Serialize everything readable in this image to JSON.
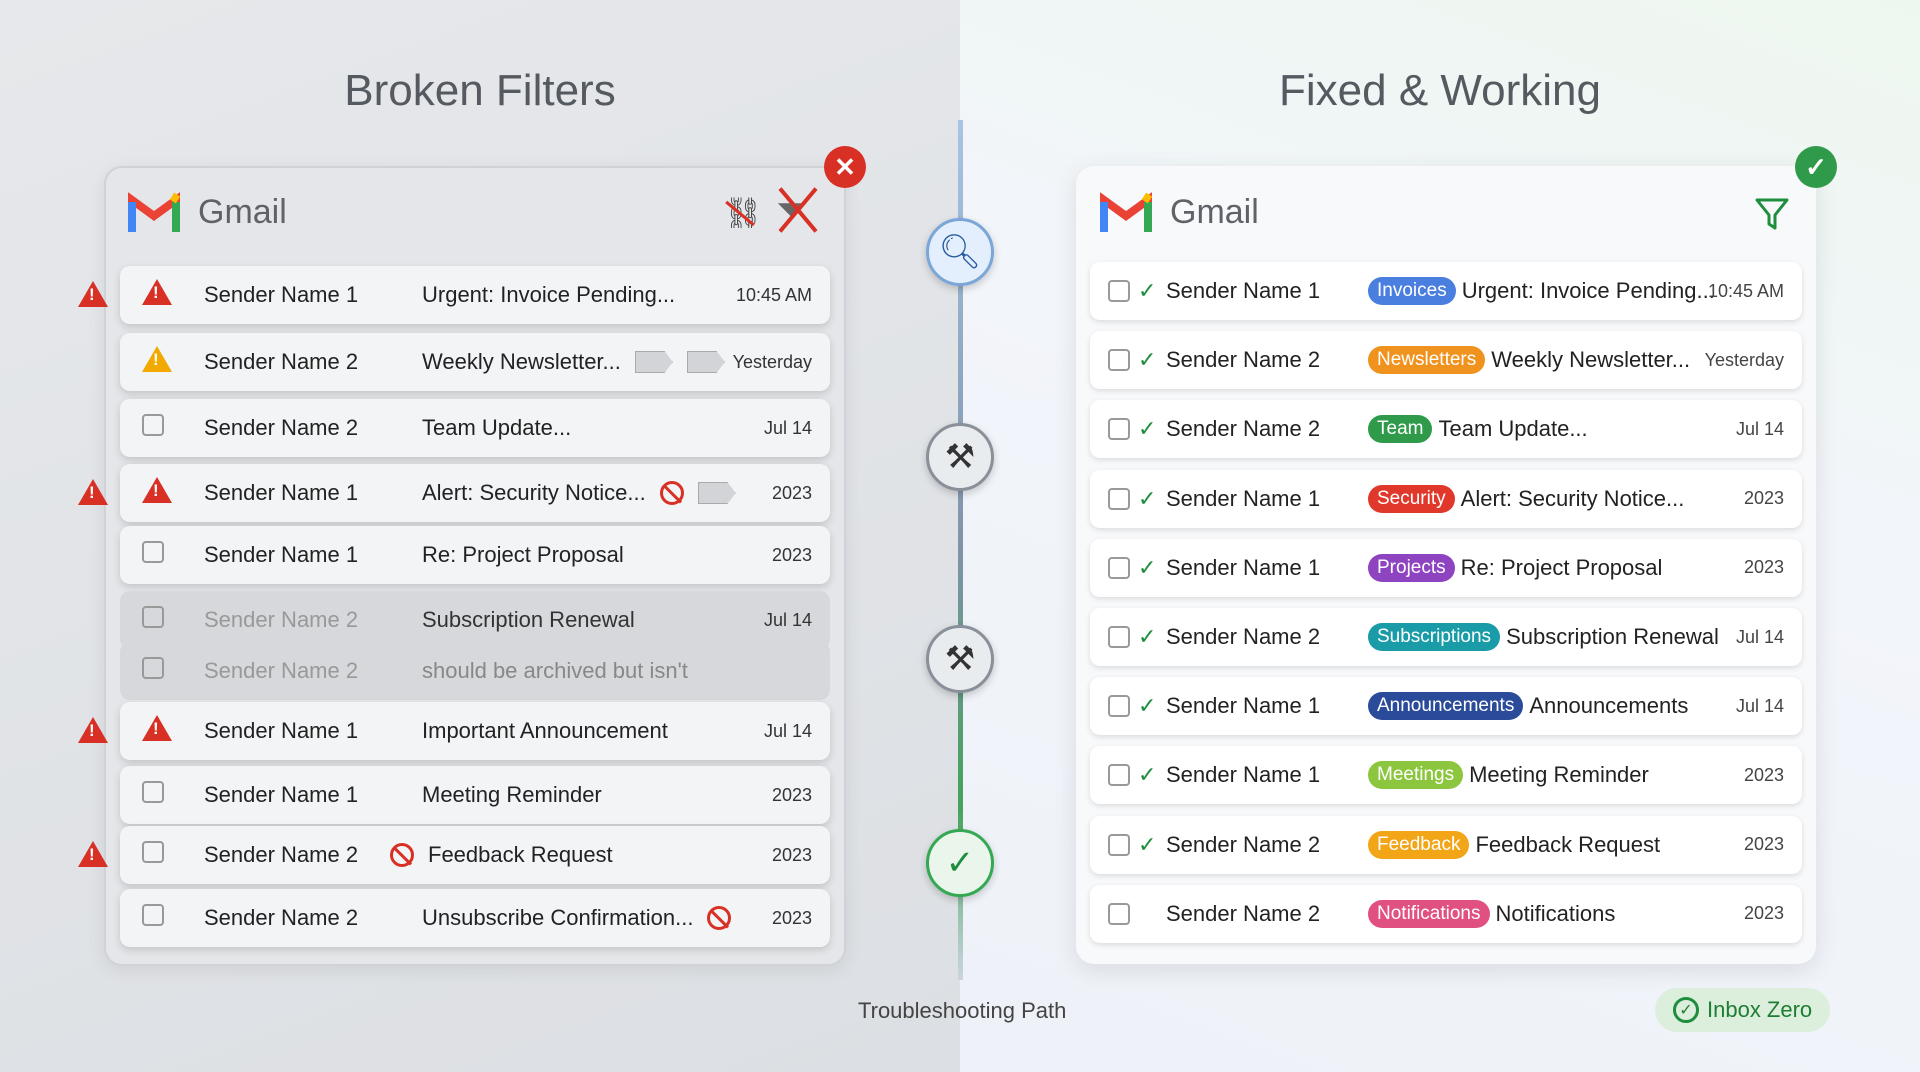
{
  "left": {
    "title": "Broken Filters",
    "brand": "Gmail",
    "rows": [
      {
        "sender": "Sender Name 1",
        "subject": "Urgent: Invoice Pending...",
        "date": "10:45 AM",
        "lead": "warn-red",
        "side_warn": true,
        "tags": 0,
        "blocked": false,
        "dim": false
      },
      {
        "sender": "Sender Name 2",
        "subject": "Weekly Newsletter...",
        "date": "Yesterday",
        "lead": "warn-yellow",
        "side_warn": false,
        "tags": 2,
        "blocked": false,
        "dim": false
      },
      {
        "sender": "Sender Name 2",
        "subject": "Team Update...",
        "date": "Jul 14",
        "lead": "checkbox",
        "side_warn": false,
        "tags": 0,
        "blocked": false,
        "dim": false
      },
      {
        "sender": "Sender Name 1",
        "subject": "Alert: Security Notice...",
        "date": "2023",
        "lead": "warn-red",
        "side_warn": true,
        "tags": 1,
        "blocked": true,
        "dim": false
      },
      {
        "sender": "Sender Name 1",
        "subject": "Re: Project Proposal",
        "date": "2023",
        "lead": "checkbox",
        "side_warn": false,
        "tags": 0,
        "blocked": false,
        "dim": false
      },
      {
        "sender": "Sender Name 2",
        "subject": "Subscription Renewal",
        "date": "Jul 14",
        "lead": "checkbox",
        "side_warn": false,
        "tags": 0,
        "blocked": false,
        "dim": true
      },
      {
        "sender": "Sender Name 2",
        "subject": "should be archived but isn't",
        "date": "",
        "lead": "checkbox",
        "side_warn": false,
        "tags": 0,
        "blocked": false,
        "dim": true
      },
      {
        "sender": "Sender Name 1",
        "subject": "Important Announcement",
        "date": "Jul 14",
        "lead": "warn-red",
        "side_warn": true,
        "tags": 0,
        "blocked": false,
        "dim": false
      },
      {
        "sender": "Sender Name 1",
        "subject": "Meeting Reminder",
        "date": "2023",
        "lead": "checkbox",
        "side_warn": false,
        "tags": 0,
        "blocked": false,
        "dim": false
      },
      {
        "sender": "Sender Name 2",
        "subject": "Feedback Request",
        "date": "2023",
        "lead": "checkbox",
        "side_warn": true,
        "tags": 0,
        "blocked": "before",
        "dim": false
      },
      {
        "sender": "Sender Name 2",
        "subject": "Unsubscribe Confirmation...",
        "date": "2023",
        "lead": "checkbox",
        "side_warn": false,
        "tags": 0,
        "blocked": true,
        "dim": false
      }
    ]
  },
  "right": {
    "title": "Fixed & Working",
    "brand": "Gmail",
    "rows": [
      {
        "sender": "Sender Name 1",
        "label": "Invoices",
        "color": "#4a7fe0",
        "subject": "Urgent: Invoice Pending...",
        "date": "10:45 AM",
        "checked": true
      },
      {
        "sender": "Sender Name 2",
        "label": "Newsletters",
        "color": "#f0921e",
        "subject": "Weekly Newsletter...",
        "date": "Yesterday",
        "checked": true
      },
      {
        "sender": "Sender Name 2",
        "label": "Team",
        "color": "#2e9a4a",
        "subject": "Team Update...",
        "date": "Jul 14",
        "checked": true
      },
      {
        "sender": "Sender Name 1",
        "label": "Security",
        "color": "#e0392b",
        "subject": "Alert: Security Notice...",
        "date": "2023",
        "checked": true
      },
      {
        "sender": "Sender Name 1",
        "label": "Projects",
        "color": "#8e44c0",
        "subject": "Re: Project Proposal",
        "date": "2023",
        "checked": true
      },
      {
        "sender": "Sender Name 2",
        "label": "Subscriptions",
        "color": "#1a9ba8",
        "subject": "Subscription Renewal",
        "date": "Jul 14",
        "checked": true
      },
      {
        "sender": "Sender Name 1",
        "label": "Announcements",
        "color": "#2a4a9a",
        "subject": "Announcements",
        "date": "Jul 14",
        "checked": true
      },
      {
        "sender": "Sender Name 1",
        "label": "Meetings",
        "color": "#8cc63f",
        "subject": "Meeting Reminder",
        "date": "2023",
        "checked": true
      },
      {
        "sender": "Sender Name 2",
        "label": "Feedback",
        "color": "#f2a516",
        "subject": "Feedback Request",
        "date": "2023",
        "checked": true
      },
      {
        "sender": "Sender Name 2",
        "label": "Notifications",
        "color": "#e05080",
        "subject": "Notifications",
        "date": "2023",
        "checked": false
      }
    ]
  },
  "path": {
    "label": "Troubleshooting Path",
    "steps": [
      "search-icon",
      "tools-icon",
      "tools-icon",
      "check-icon"
    ]
  },
  "inbox_zero": "Inbox Zero",
  "colors": {
    "error": "#d93025",
    "success": "#1e8e3e"
  }
}
